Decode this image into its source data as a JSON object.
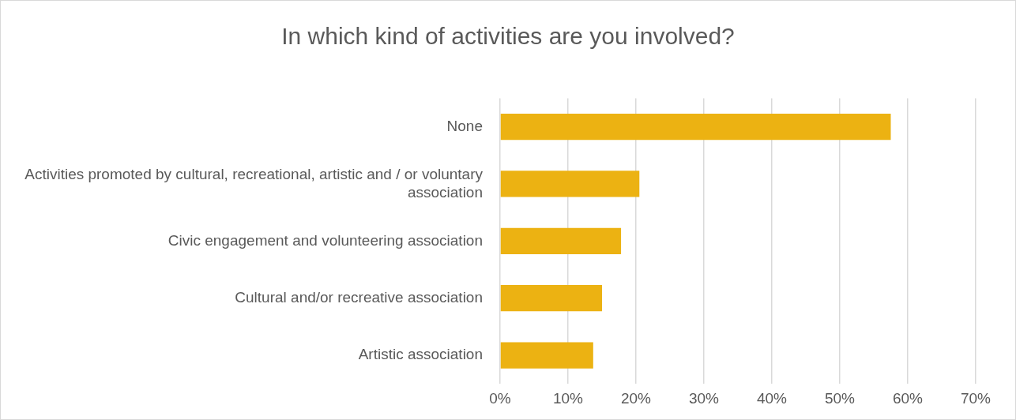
{
  "chart_data": {
    "type": "bar",
    "orientation": "horizontal",
    "title": "In which kind of activities are you involved?",
    "categories": [
      "None",
      "Activities promoted by cultural, recreational, artistic and / or voluntary association",
      "Civic engagement and volunteering association",
      "Cultural and/or recreative association",
      "Artistic association"
    ],
    "values": [
      57.5,
      20.5,
      17.8,
      15.0,
      13.7
    ],
    "color": "#ecb212",
    "xlim": [
      0,
      70
    ],
    "xticks": [
      {
        "value": 0,
        "label": "0%"
      },
      {
        "value": 10,
        "label": "10%"
      },
      {
        "value": 20,
        "label": "20%"
      },
      {
        "value": 30,
        "label": "30%"
      },
      {
        "value": 40,
        "label": "40%"
      },
      {
        "value": 50,
        "label": "50%"
      },
      {
        "value": 60,
        "label": "60%"
      },
      {
        "value": 70,
        "label": "70%"
      }
    ],
    "grid": "x",
    "legend": false
  }
}
